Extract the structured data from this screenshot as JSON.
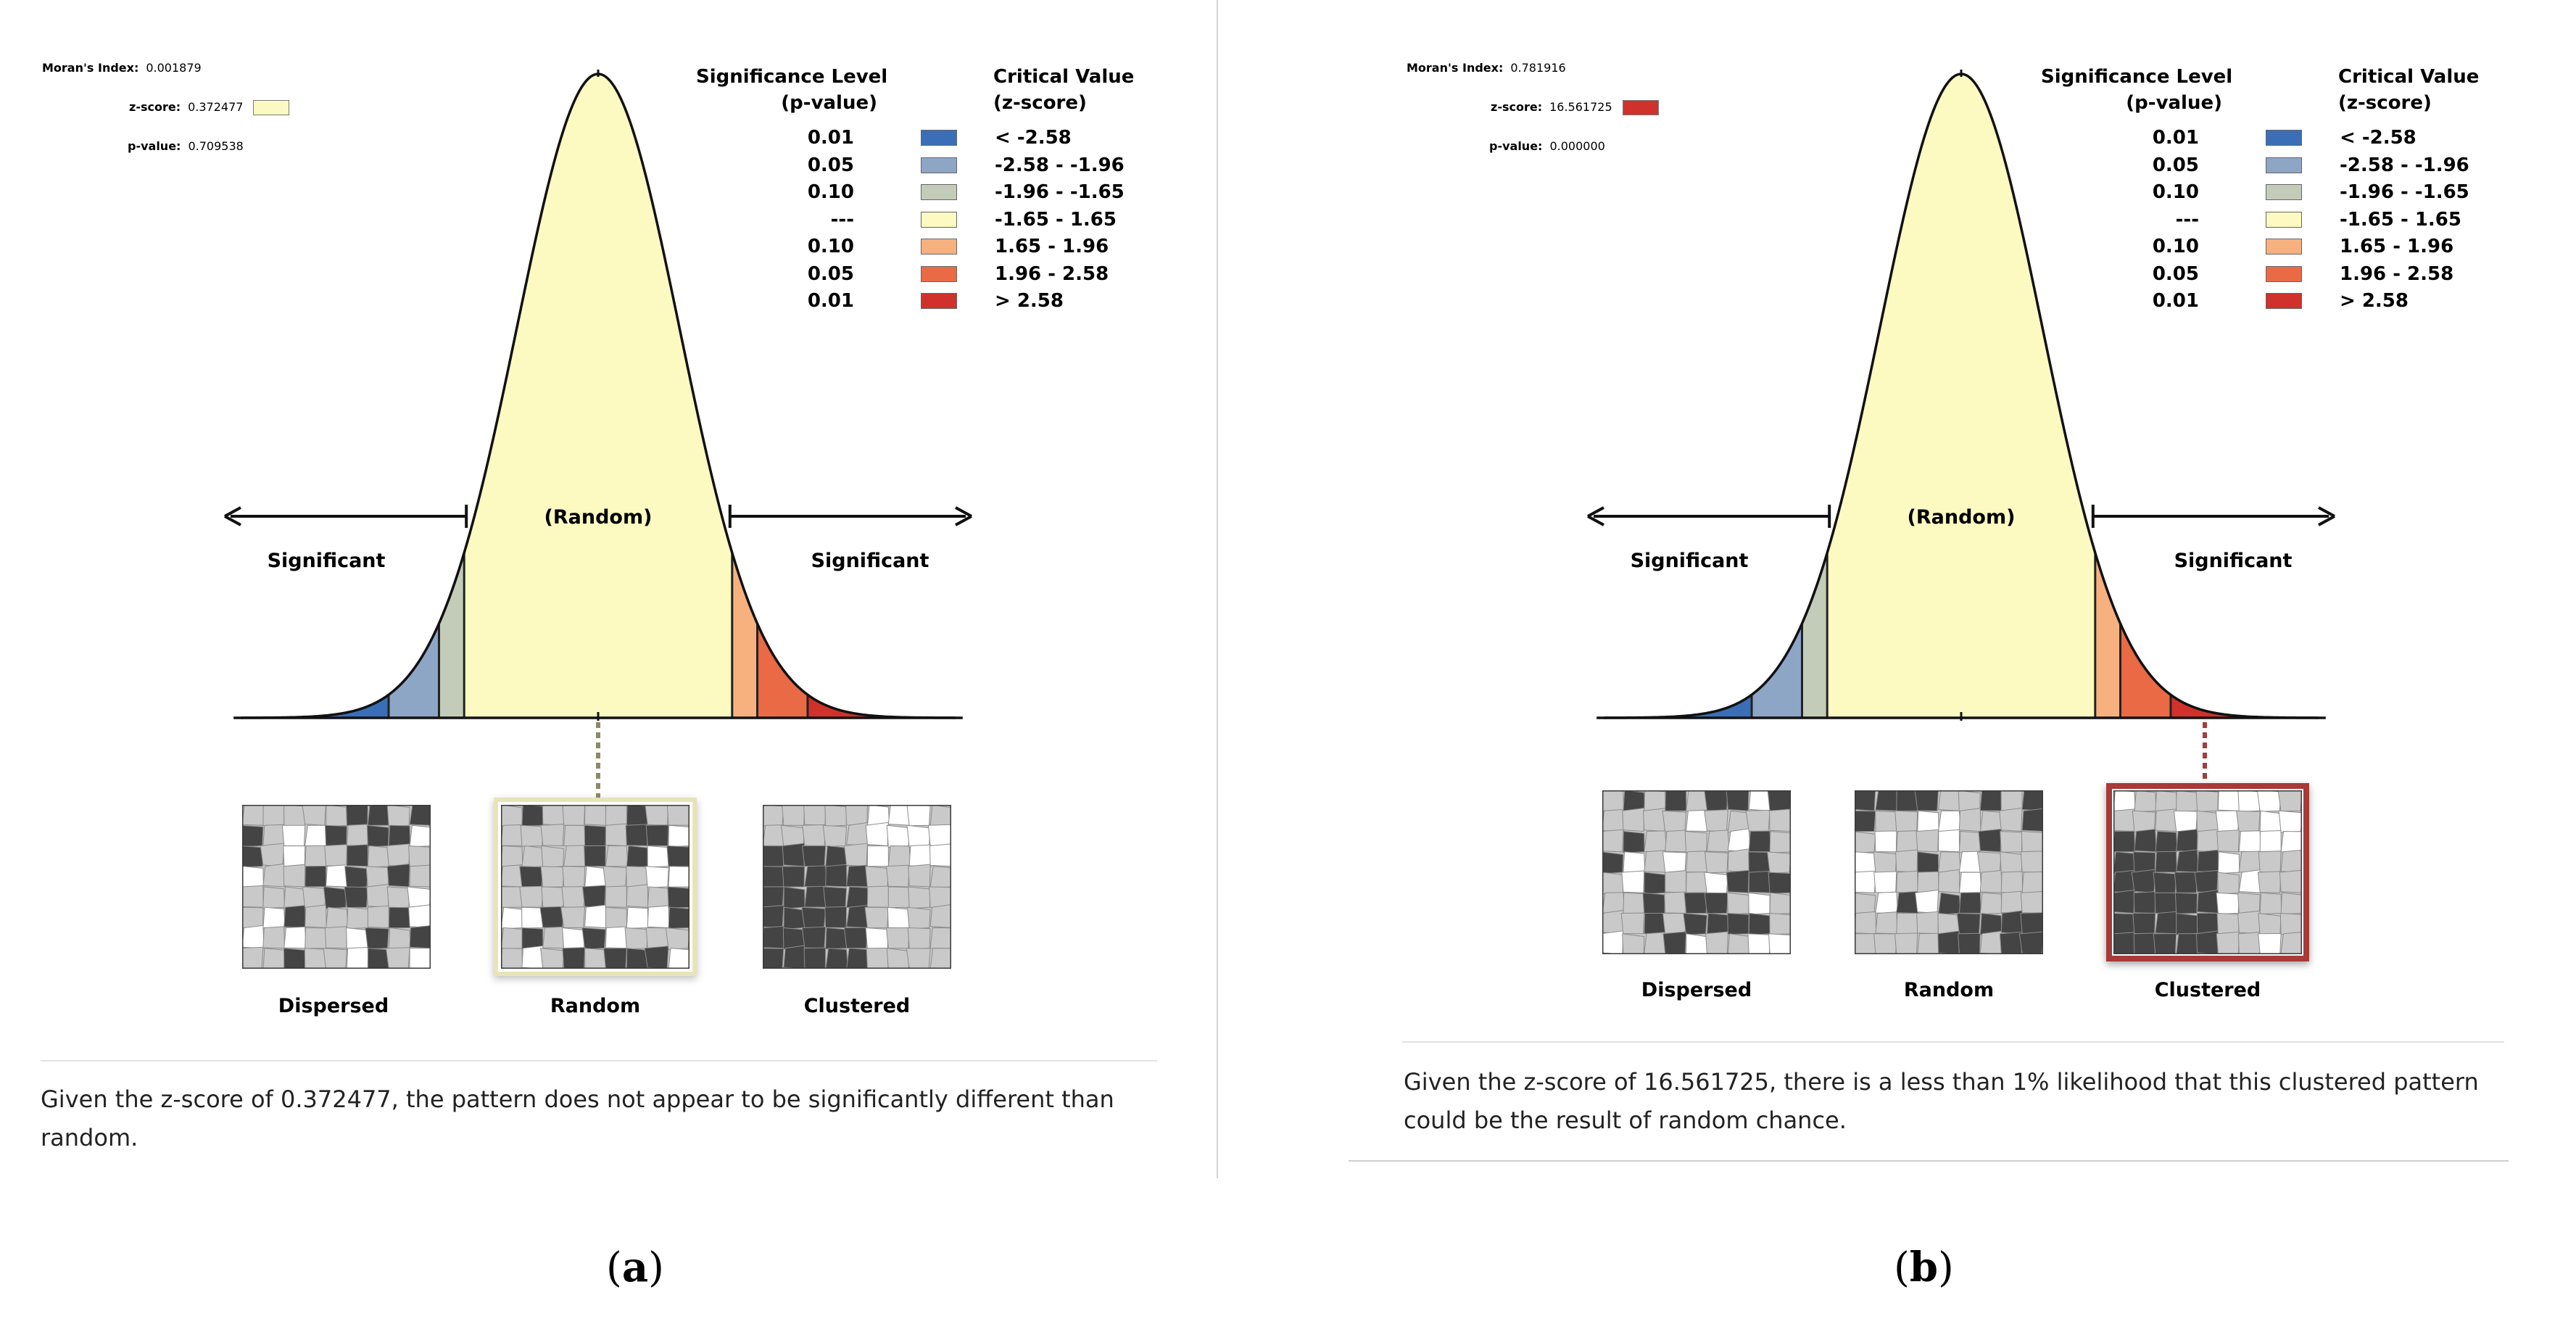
{
  "legend": {
    "sig_header_1": "Significance Level",
    "sig_header_2": "(p-value)",
    "crit_header_1": "Critical Value",
    "crit_header_2": "(z-score)",
    "rows": [
      {
        "p": "0.01",
        "z": "< -2.58",
        "color": "#3a6fb8"
      },
      {
        "p": "0.05",
        "z": "-2.58 - -1.96",
        "color": "#8ea6c6"
      },
      {
        "p": "0.10",
        "z": "-1.96 - -1.65",
        "color": "#c3ccb9"
      },
      {
        "p": "---",
        "z": "-1.65 - 1.65",
        "color": "#fcfac0"
      },
      {
        "p": "0.10",
        "z": "1.65 - 1.96",
        "color": "#f6b17f"
      },
      {
        "p": "0.05",
        "z": "1.96 - 2.58",
        "color": "#e96a45"
      },
      {
        "p": "0.01",
        "z": "> 2.58",
        "color": "#d0312a"
      }
    ]
  },
  "curve_labels": {
    "significant": "Significant",
    "random": "(Random)"
  },
  "thumbnails": {
    "dispersed": "Dispersed",
    "random": "Random",
    "clustered": "Clustered"
  },
  "panel_a": {
    "morans_label": "Moran's Index:",
    "morans_value": "0.001879",
    "z_label": "z-score:",
    "z_value": "0.372477",
    "z_color": "#fcfac0",
    "p_label": "p-value:",
    "p_value": "0.709538",
    "highlighted": "random",
    "summary_line1": "Given the z-score of 0.372477, the pattern does not appear to be significantly different than",
    "summary_line2": "random.",
    "caption_open": "(",
    "caption_letter": "a",
    "caption_close": ")"
  },
  "panel_b": {
    "morans_label": "Moran's Index:",
    "morans_value": "0.781916",
    "z_label": "z-score:",
    "z_value": "16.561725",
    "z_color": "#d0312a",
    "p_label": "p-value:",
    "p_value": "0.000000",
    "highlighted": "clustered",
    "summary_line1": "Given the z-score of 16.561725, there is a less than 1% likelihood that this clustered pattern",
    "summary_line2": "could be the result of random chance.",
    "caption_open": "(",
    "caption_letter": "b",
    "caption_close": ")"
  }
}
